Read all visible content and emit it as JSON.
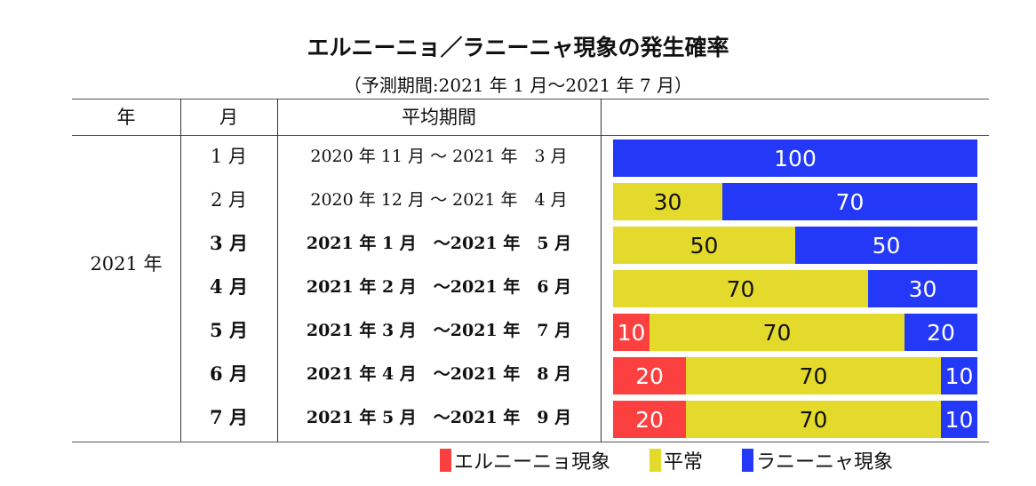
{
  "chart_data": {
    "type": "bar",
    "stacked": true,
    "orientation": "horizontal",
    "title": "エルニーニョ／ラニーニャ現象の発生確率",
    "subtitle": "（予測期間:2021 年 1 月～2021 年 7 月）",
    "columns": {
      "year": "年",
      "month": "月",
      "period": "平均期間"
    },
    "year_label": "2021 年",
    "categories": [
      "1 月",
      "2 月",
      "3 月",
      "4 月",
      "5 月",
      "6 月",
      "7 月"
    ],
    "periods": [
      "2020 年 11 月 ～ 2021 年　3 月",
      "2020 年 12 月 ～ 2021 年　4 月",
      "2021 年 1 月　～2021 年　5 月",
      "2021 年 2 月　～2021 年　6 月",
      "2021 年 3 月　～2021 年　7 月",
      "2021 年 4 月　～2021 年　8 月",
      "2021 年 5 月　～2021 年　9 月"
    ],
    "bold_rows": [
      false,
      false,
      true,
      true,
      true,
      true,
      true
    ],
    "series": [
      {
        "name": "エルニーニョ現象",
        "color": "#fc4040",
        "text_color": "#ffffff",
        "values": [
          0,
          0,
          0,
          0,
          10,
          20,
          20
        ]
      },
      {
        "name": "平常",
        "color": "#e4da2c",
        "text_color": "#111111",
        "values": [
          0,
          30,
          50,
          70,
          70,
          70,
          70
        ]
      },
      {
        "name": "ラニーニャ現象",
        "color": "#2438f8",
        "text_color": "#ffffff",
        "values": [
          100,
          70,
          50,
          30,
          20,
          10,
          10
        ]
      }
    ],
    "xlim": [
      0,
      100
    ],
    "legend": "bottom-right"
  }
}
